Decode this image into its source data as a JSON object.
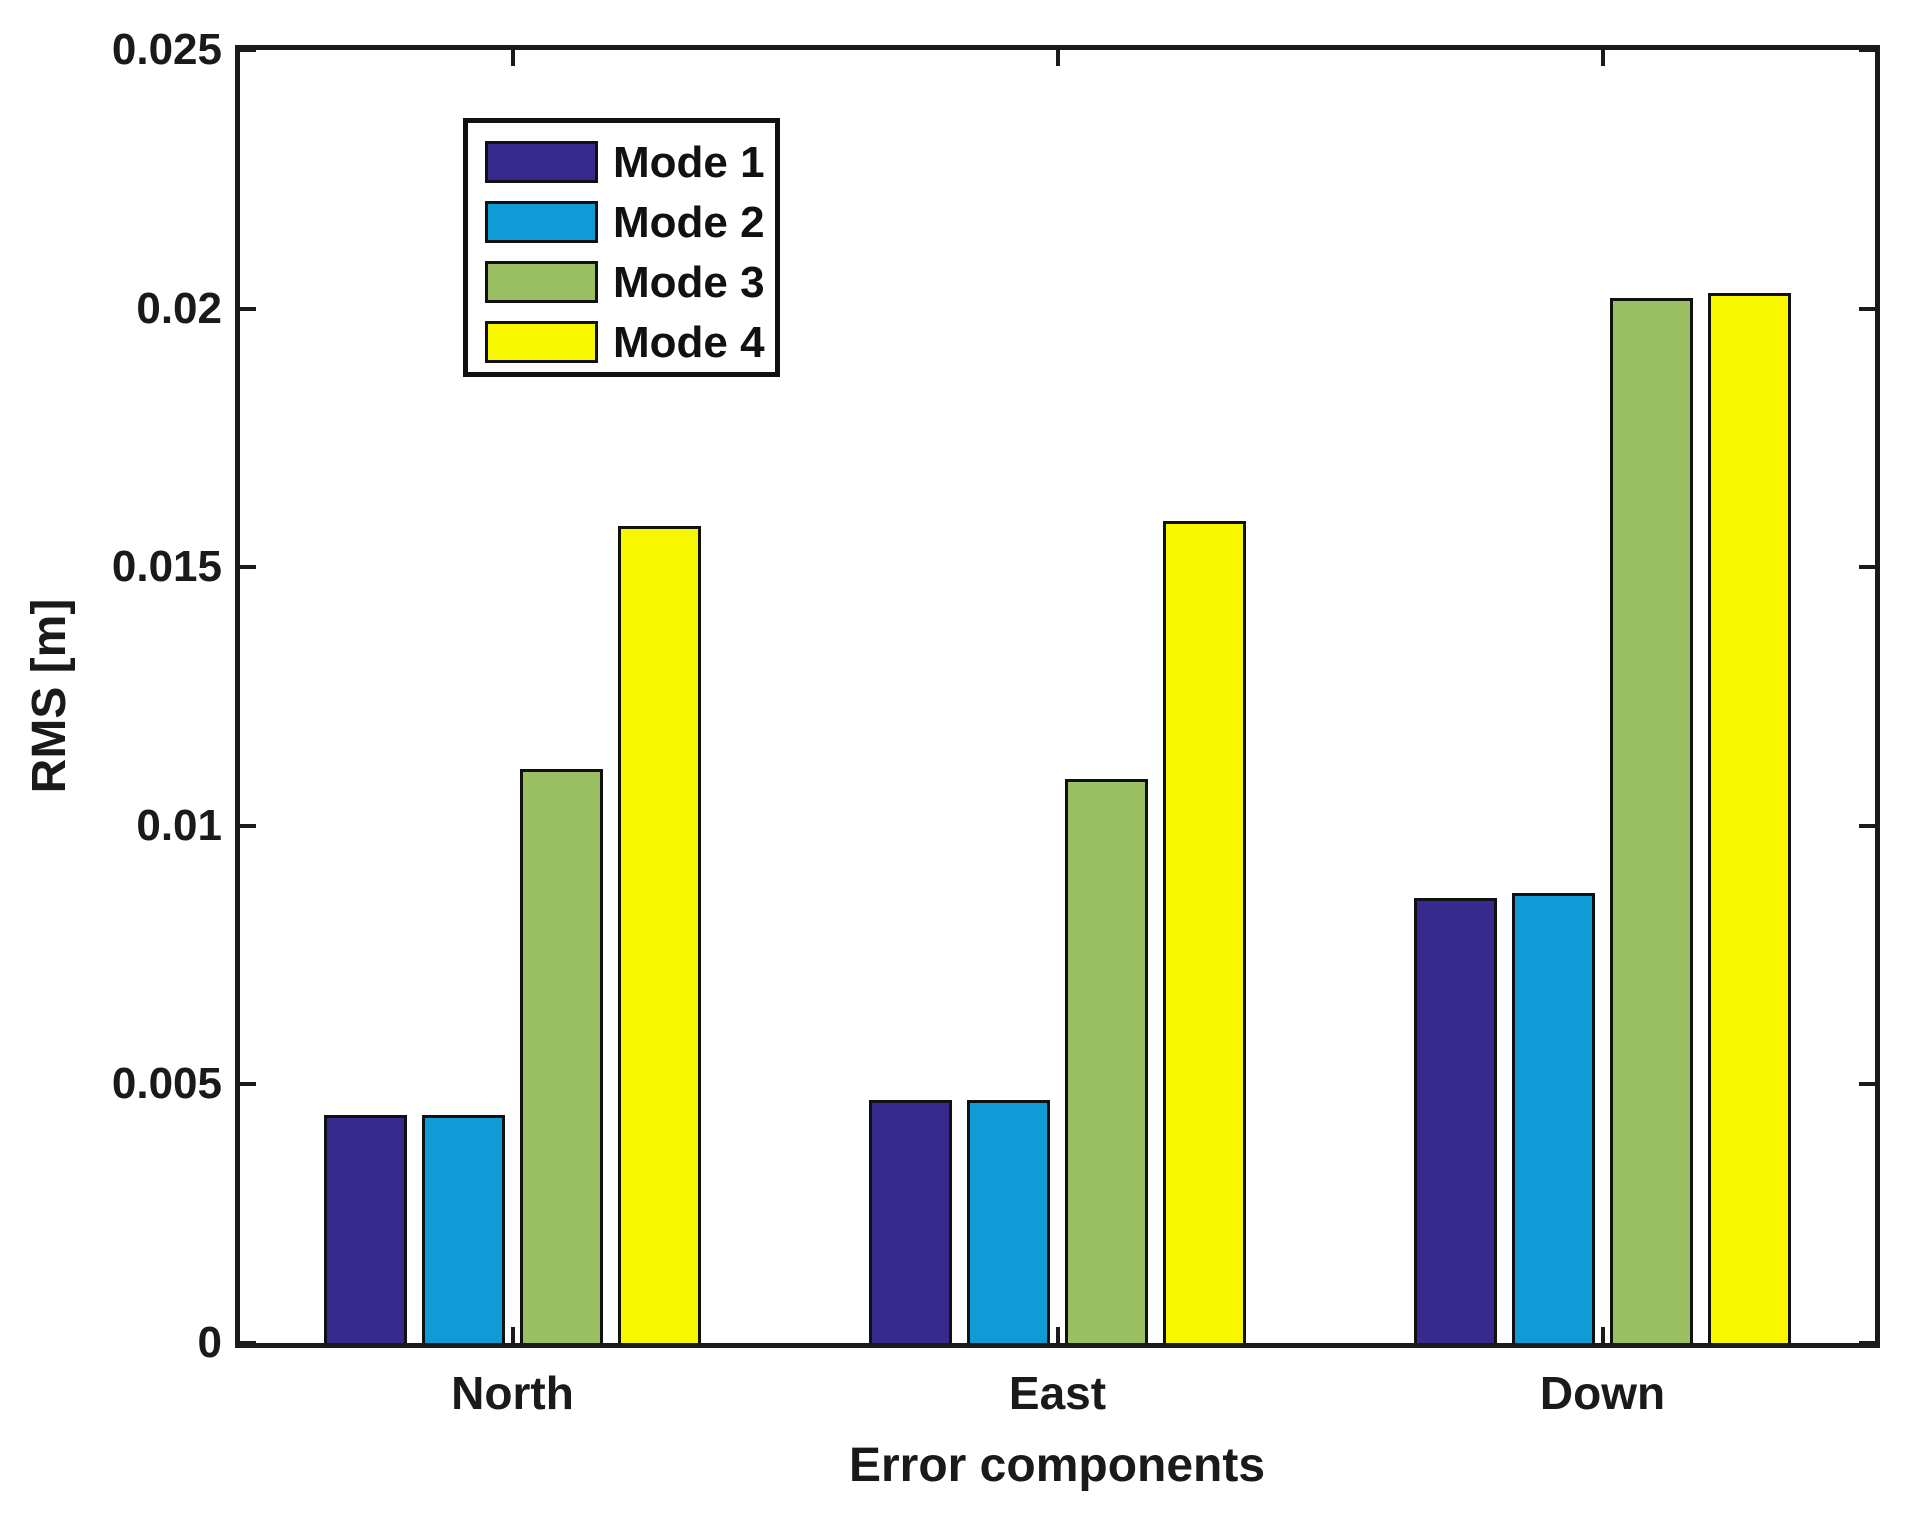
{
  "figure": {
    "background": "#ffffff",
    "axis_color": "#1a1a1a",
    "text_color": "#1a1a1a",
    "bar_edge_color": "#111111"
  },
  "chart_data": {
    "type": "bar",
    "title": "",
    "xlabel": "Error components",
    "ylabel": "RMS [m]",
    "categories": [
      "North",
      "East",
      "Down"
    ],
    "series": [
      {
        "name": "Mode 1",
        "color": "#372A8D",
        "values": [
          0.0044,
          0.0047,
          0.0086
        ]
      },
      {
        "name": "Mode 2",
        "color": "#109BD7",
        "values": [
          0.0044,
          0.0047,
          0.0087
        ]
      },
      {
        "name": "Mode 3",
        "color": "#9AC063",
        "values": [
          0.0111,
          0.0109,
          0.0202
        ]
      },
      {
        "name": "Mode 4",
        "color": "#F7F700",
        "values": [
          0.0158,
          0.0159,
          0.0203
        ]
      }
    ],
    "ylim": [
      0,
      0.025
    ],
    "yticks": [
      "0",
      "0.005",
      "0.01",
      "0.015",
      "0.02",
      "0.025"
    ],
    "ytick_values": [
      0,
      0.005,
      0.01,
      0.015,
      0.02,
      0.025
    ],
    "grid": false,
    "legend_position": "upper-left-inside"
  }
}
